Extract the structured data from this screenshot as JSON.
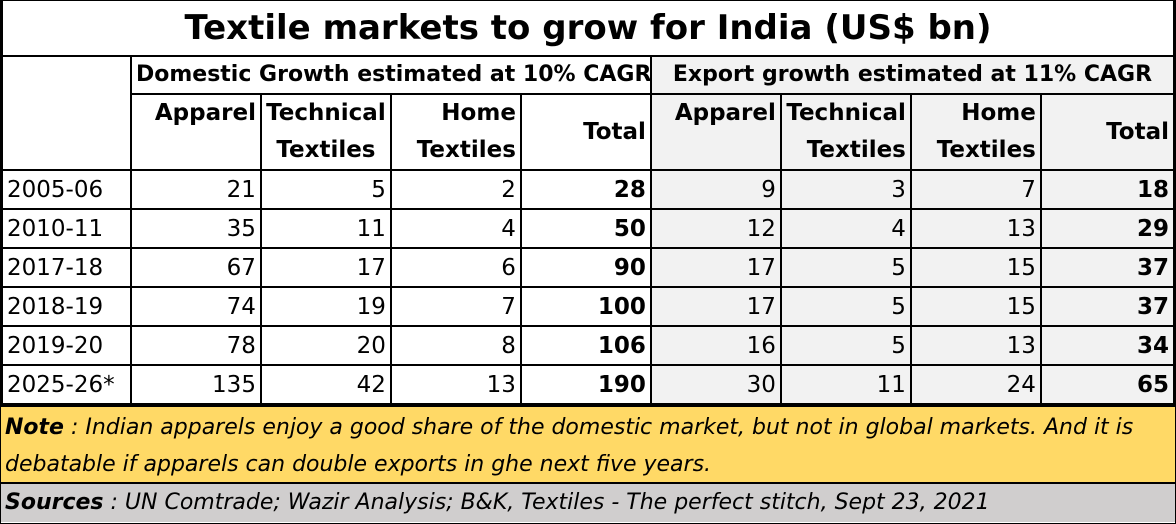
{
  "title": "Textile markets to grow for India (US$ bn)",
  "groups": {
    "domestic": "Domestic Growth estimated at 10% CAGR",
    "export": "Export growth estimated at 11% CAGR"
  },
  "columns": {
    "apparel": "Apparel",
    "technical_1": "Technical",
    "technical_2": "Textiles",
    "home_1": "Home",
    "home_2": "Textiles",
    "total": "Total"
  },
  "rows": [
    {
      "year": "2005-06",
      "d_apparel": "21",
      "d_technical": "5",
      "d_home": "2",
      "d_total": "28",
      "e_apparel": "9",
      "e_technical": "3",
      "e_home": "7",
      "e_total": "18"
    },
    {
      "year": "2010-11",
      "d_apparel": "35",
      "d_technical": "11",
      "d_home": "4",
      "d_total": "50",
      "e_apparel": "12",
      "e_technical": "4",
      "e_home": "13",
      "e_total": "29"
    },
    {
      "year": "2017-18",
      "d_apparel": "67",
      "d_technical": "17",
      "d_home": "6",
      "d_total": "90",
      "e_apparel": "17",
      "e_technical": "5",
      "e_home": "15",
      "e_total": "37"
    },
    {
      "year": "2018-19",
      "d_apparel": "74",
      "d_technical": "19",
      "d_home": "7",
      "d_total": "100",
      "e_apparel": "17",
      "e_technical": "5",
      "e_home": "15",
      "e_total": "37"
    },
    {
      "year": "2019-20",
      "d_apparel": "78",
      "d_technical": "20",
      "d_home": "8",
      "d_total": "106",
      "e_apparel": "16",
      "e_technical": "5",
      "e_home": "13",
      "e_total": "34"
    },
    {
      "year": "2025-26*",
      "d_apparel": "135",
      "d_technical": "42",
      "d_home": "13",
      "d_total": "190",
      "e_apparel": "30",
      "e_technical": "11",
      "e_home": "24",
      "e_total": "65"
    }
  ],
  "note": {
    "label": "Note",
    "text": " : Indian apparels enjoy a good share of the domestic market, but not in global markets. And it is debatable if apparels can double exports in ghe next five years."
  },
  "sources": {
    "label": "Sources",
    "text": " : UN Comtrade; Wazir Analysis; B&K, Textiles - The perfect stitch, Sept 23, 2021"
  }
}
